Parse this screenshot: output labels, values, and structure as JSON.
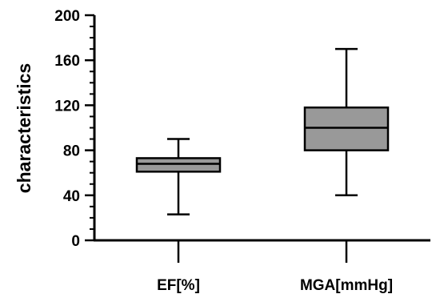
{
  "chart_data": {
    "type": "box",
    "title": "",
    "xlabel": "",
    "ylabel": "characteristics",
    "ylim": [
      0,
      200
    ],
    "yticks": [
      0,
      40,
      80,
      120,
      160,
      200
    ],
    "grid": false,
    "legend": "none",
    "box_fill": "#999999",
    "line_color": "#000000",
    "categories": [
      "EF[%]",
      "MGA[mmHg]"
    ],
    "boxes": [
      {
        "category": "EF[%]",
        "min": 23,
        "q1": 61,
        "median": 68,
        "q3": 73,
        "max": 90
      },
      {
        "category": "MGA[mmHg]",
        "min": 40,
        "q1": 80,
        "median": 100,
        "q3": 118,
        "max": 170
      }
    ]
  }
}
